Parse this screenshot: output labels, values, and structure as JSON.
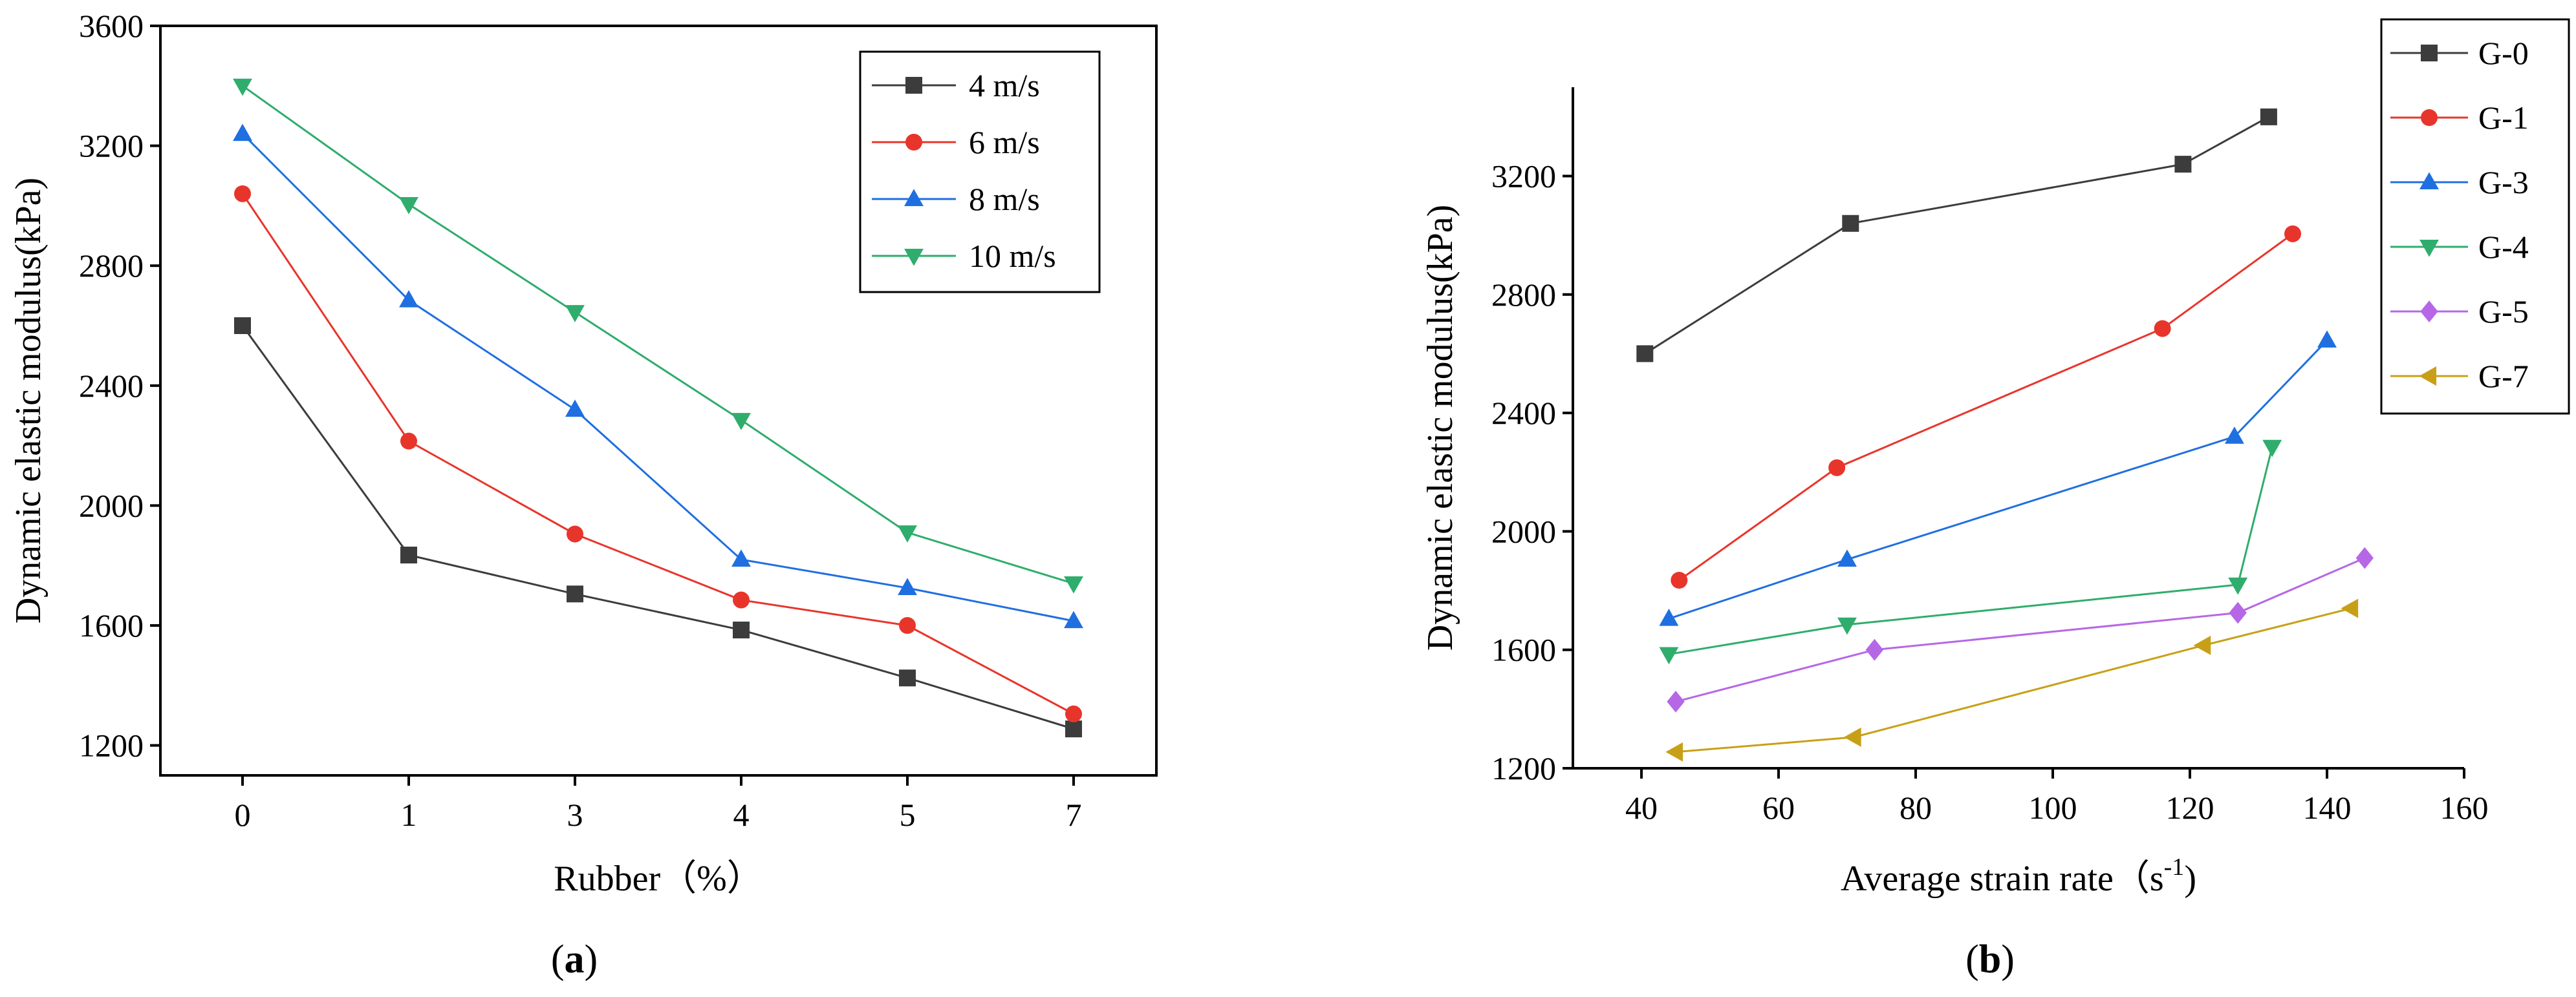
{
  "chart_data": [
    {
      "type": "line",
      "id": "a",
      "xlabel": "Rubber（%）",
      "ylabel": "Dynamic elastic modulus(kPa)",
      "categories": [
        "0",
        "1",
        "3",
        "4",
        "5",
        "7"
      ],
      "ylim": [
        1100,
        3600
      ],
      "yticks": [
        1200,
        1600,
        2000,
        2400,
        2800,
        3200,
        3600
      ],
      "legend_position": "top-right",
      "caption": {
        "open": "(",
        "letter": "a",
        "close": ")"
      },
      "series": [
        {
          "name": "4 m/s",
          "color": "#3c3c3c",
          "marker": "square",
          "values": [
            2600,
            1835,
            1705,
            1585,
            1425,
            1255
          ]
        },
        {
          "name": "6 m/s",
          "color": "#e8352b",
          "marker": "circle",
          "values": [
            3040,
            2215,
            1905,
            1685,
            1600,
            1305
          ]
        },
        {
          "name": "8 m/s",
          "color": "#1f6fe0",
          "marker": "triangle-up",
          "values": [
            3240,
            2685,
            2320,
            1820,
            1725,
            1615
          ]
        },
        {
          "name": "10 m/s",
          "color": "#2fad6c",
          "marker": "triangle-down",
          "values": [
            3400,
            3005,
            2645,
            2285,
            1910,
            1740
          ]
        }
      ]
    },
    {
      "type": "line",
      "id": "b",
      "xlabel": "Average strain rate（s",
      "xlabel_sup": "-1",
      "xlabel_close": ")",
      "ylabel": "Dynamic elastic modulus(kPa)",
      "xlim": [
        30,
        160
      ],
      "xticks": [
        40,
        60,
        80,
        100,
        120,
        140,
        160
      ],
      "ylim": [
        1200,
        3500
      ],
      "yticks": [
        1200,
        1600,
        2000,
        2400,
        2800,
        3200
      ],
      "legend_position": "top-right",
      "caption": {
        "open": "(",
        "letter": "b",
        "close": ")"
      },
      "series": [
        {
          "name": "G-0",
          "color": "#3c3c3c",
          "marker": "square",
          "points": [
            [
              40.5,
              2600
            ],
            [
              70.5,
              3040
            ],
            [
              119,
              3240
            ],
            [
              131.5,
              3400
            ]
          ]
        },
        {
          "name": "G-1",
          "color": "#e8352b",
          "marker": "circle",
          "points": [
            [
              45.5,
              1835
            ],
            [
              68.5,
              2215
            ],
            [
              116,
              2685
            ],
            [
              135,
              3005
            ]
          ]
        },
        {
          "name": "G-3",
          "color": "#1f6fe0",
          "marker": "triangle-up",
          "points": [
            [
              44,
              1705
            ],
            [
              70,
              1905
            ],
            [
              126.5,
              2320
            ],
            [
              140,
              2645
            ]
          ]
        },
        {
          "name": "G-4",
          "color": "#2fad6c",
          "marker": "triangle-down",
          "points": [
            [
              44,
              1585
            ],
            [
              70,
              1685
            ],
            [
              127,
              1820
            ],
            [
              132,
              2285
            ]
          ]
        },
        {
          "name": "G-5",
          "color": "#b667e6",
          "marker": "diamond",
          "points": [
            [
              45,
              1425
            ],
            [
              74,
              1600
            ],
            [
              127,
              1725
            ],
            [
              145.5,
              1910
            ]
          ]
        },
        {
          "name": "G-7",
          "color": "#c8a017",
          "marker": "triangle-left",
          "points": [
            [
              45,
              1255
            ],
            [
              71,
              1305
            ],
            [
              122,
              1615
            ],
            [
              143.5,
              1740
            ]
          ]
        }
      ]
    }
  ]
}
